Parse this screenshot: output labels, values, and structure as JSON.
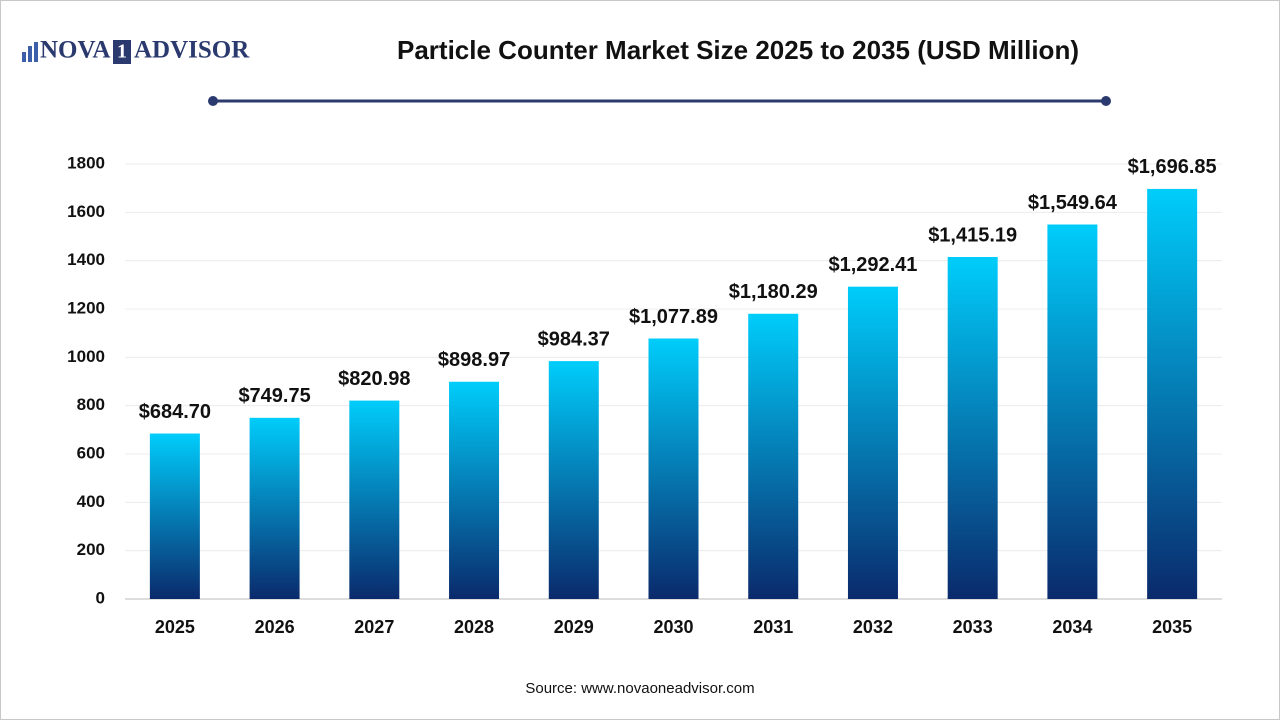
{
  "logo": {
    "left": "NOVA",
    "mark": "1",
    "right": "ADVISOR"
  },
  "chart_data": {
    "type": "bar",
    "title": "Particle Counter Market Size 2025 to 2035 (USD Million)",
    "categories": [
      "2025",
      "2026",
      "2027",
      "2028",
      "2029",
      "2030",
      "2031",
      "2032",
      "2033",
      "2034",
      "2035"
    ],
    "values": [
      684.7,
      749.75,
      820.98,
      898.97,
      984.37,
      1077.89,
      1180.29,
      1292.41,
      1415.19,
      1549.64,
      1696.85
    ],
    "value_labels": [
      "$684.70",
      "$749.75",
      "$820.98",
      "$898.97",
      "$984.37",
      "$1,077.89",
      "$1,180.29",
      "$1,292.41",
      "$1,415.19",
      "$1,549.64",
      "$1,696.85"
    ],
    "color_top": "#00cdfb",
    "color_bottom": "#0a2a6c",
    "ylim": [
      0,
      1800
    ],
    "yticks": [
      0,
      200,
      400,
      600,
      800,
      1000,
      1200,
      1400,
      1600,
      1800
    ],
    "grid": true,
    "source": "Source: www.novaoneadvisor.com"
  }
}
